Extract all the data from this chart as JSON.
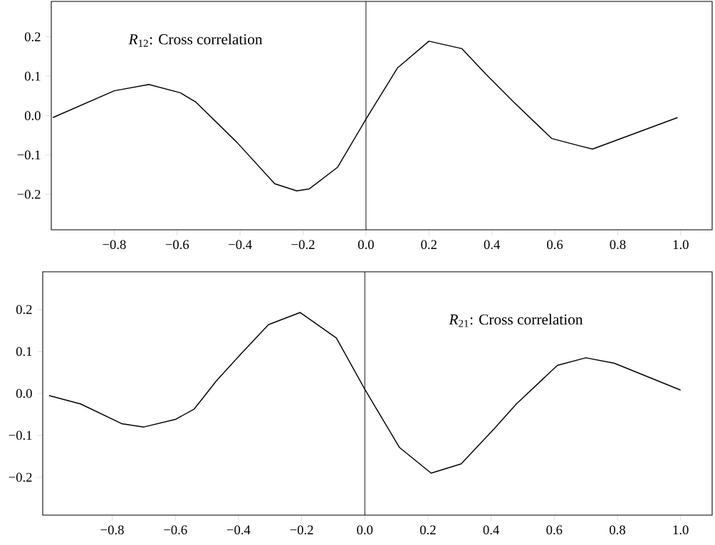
{
  "chart_data": [
    {
      "type": "line",
      "annotations": [
        "*R*$_{12}$: Cross correlation"
      ],
      "x": [
        -0.995,
        -0.8,
        -0.69,
        -0.59,
        -0.54,
        -0.41,
        -0.29,
        -0.22,
        -0.18,
        -0.09,
        0.0,
        0.1,
        0.2,
        0.305,
        0.38,
        0.47,
        0.59,
        0.68,
        0.72,
        0.99
      ],
      "series": [
        {
          "color": "#000000",
          "values": [
            -0.005,
            0.063,
            0.079,
            0.058,
            0.034,
            -0.068,
            -0.173,
            -0.191,
            -0.186,
            -0.131,
            -0.009,
            0.121,
            0.189,
            0.17,
            0.106,
            0.034,
            -0.058,
            -0.077,
            -0.085,
            -0.005
          ]
        }
      ],
      "xlim": [
        -1.0,
        1.1
      ],
      "ylim": [
        -0.29,
        0.29
      ],
      "xticks": [
        {
          "value": -0.8,
          "label": "−0.8"
        },
        {
          "value": -0.6,
          "label": "−0.6"
        },
        {
          "value": -0.4,
          "label": "−0.4"
        },
        {
          "value": -0.2,
          "label": "−0.2"
        },
        {
          "value": 0.0,
          "label": "0.0"
        },
        {
          "value": 0.2,
          "label": "0.2"
        },
        {
          "value": 0.4,
          "label": "0.4"
        },
        {
          "value": 0.6,
          "label": "0.6"
        },
        {
          "value": 0.8,
          "label": "0.8"
        },
        {
          "value": 1.0,
          "label": "1.0"
        }
      ],
      "yticks": [
        {
          "value": -0.2,
          "label": "−0.2"
        },
        {
          "value": -0.1,
          "label": "−0.1"
        },
        {
          "value": 0.0,
          "label": "0.0"
        },
        {
          "value": 0.1,
          "label": "0.1"
        },
        {
          "value": 0.2,
          "label": "0.2"
        }
      ],
      "ref_lines": [
        {
          "axis": "x",
          "value": 0,
          "color": "#000000"
        }
      ],
      "grid": false
    },
    {
      "type": "line",
      "annotations": [
        "*R*$_{21}$: Cross correlation"
      ],
      "x": [
        -1.0,
        -0.9,
        -0.77,
        -0.7,
        -0.6,
        -0.54,
        -0.47,
        -0.395,
        -0.305,
        -0.205,
        -0.09,
        0.0,
        0.11,
        0.21,
        0.305,
        0.41,
        0.48,
        0.61,
        0.7,
        0.79,
        1.0
      ],
      "series": [
        {
          "color": "#000000",
          "values": [
            -0.005,
            -0.025,
            -0.072,
            -0.08,
            -0.062,
            -0.037,
            0.03,
            0.092,
            0.164,
            0.193,
            0.132,
            0.01,
            -0.129,
            -0.19,
            -0.168,
            -0.084,
            -0.025,
            0.067,
            0.085,
            0.072,
            0.008
          ]
        }
      ],
      "xlim": [
        -1.02,
        1.1
      ],
      "ylim": [
        -0.29,
        0.29
      ],
      "xticks": [
        {
          "value": -0.8,
          "label": "−0.8"
        },
        {
          "value": -0.6,
          "label": "−0.6"
        },
        {
          "value": -0.4,
          "label": "−0.4"
        },
        {
          "value": -0.2,
          "label": "−0.2"
        },
        {
          "value": 0.0,
          "label": "0.0"
        },
        {
          "value": 0.2,
          "label": "0.2"
        },
        {
          "value": 0.4,
          "label": "0.4"
        },
        {
          "value": 0.6,
          "label": "0.6"
        },
        {
          "value": 0.8,
          "label": "0.8"
        },
        {
          "value": 1.0,
          "label": "1.0"
        }
      ],
      "yticks": [
        {
          "value": -0.2,
          "label": "−0.2"
        },
        {
          "value": -0.1,
          "label": "−0.1"
        },
        {
          "value": 0.0,
          "label": "0.0"
        },
        {
          "value": 0.1,
          "label": "0.1"
        },
        {
          "value": 0.2,
          "label": "0.2"
        }
      ],
      "ref_lines": [
        {
          "axis": "x",
          "value": 0,
          "color": "#000000"
        }
      ],
      "grid": false
    }
  ]
}
